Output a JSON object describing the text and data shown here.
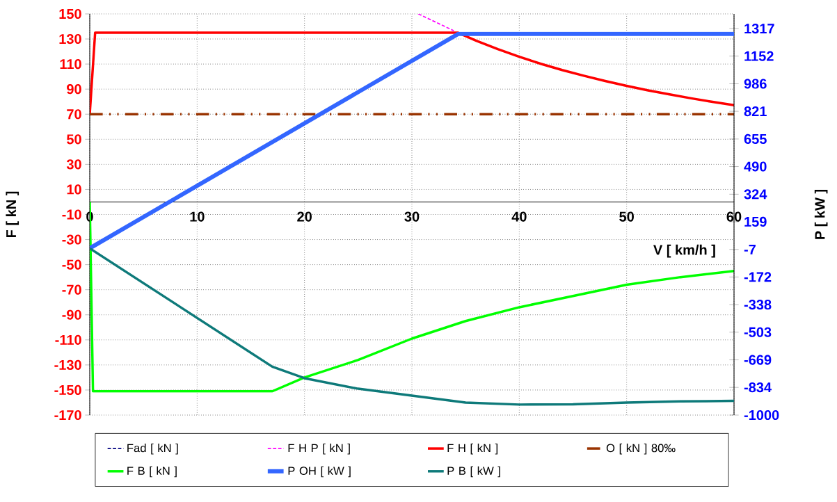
{
  "chart_data": {
    "type": "line",
    "xlabel": "V [ km/h ]",
    "ylabel": "F [ kN ]",
    "y2label": "P [ kW ]",
    "xlim": [
      0,
      60
    ],
    "xticks": [
      0,
      10,
      20,
      30,
      40,
      50,
      60
    ],
    "ylim": [
      -170,
      150
    ],
    "yticks": [
      -170,
      -150,
      -130,
      -110,
      -90,
      -70,
      -50,
      -30,
      -10,
      10,
      30,
      50,
      70,
      90,
      110,
      130,
      150
    ],
    "y2lim": [
      -1000,
      1405
    ],
    "y2ticks": [
      -1000,
      -834,
      -669,
      -503,
      -338,
      -172,
      -7,
      159,
      324,
      490,
      655,
      821,
      986,
      1152,
      1317
    ],
    "grid": true,
    "legend": "bottom",
    "series": [
      {
        "name": "Fad [ kN ]",
        "color": "#000080",
        "line_style": "dashed"
      },
      {
        "name": "F H P [ kN ]",
        "color": "#ff00ff",
        "line_style": "dashed",
        "x": [
          30.6,
          33.9
        ],
        "values": [
          150,
          136.6
        ]
      },
      {
        "name": "F H [ kN ]",
        "color": "#ff0000",
        "line_style": "solid",
        "x": [
          0,
          0.5,
          34.3,
          36,
          38,
          40,
          42,
          44,
          46,
          48,
          50,
          52,
          54,
          56,
          58,
          60
        ],
        "values": [
          70,
          135,
          135,
          128.6,
          121.9,
          115.8,
          110.2,
          105.2,
          100.7,
          96.5,
          92.6,
          89.0,
          85.8,
          82.7,
          79.8,
          77.2
        ]
      },
      {
        "name": "O [ kN ] 80‰",
        "color": "#993300",
        "line_style": "dashdotdot",
        "x": [
          0,
          60
        ],
        "values": [
          70,
          70
        ]
      },
      {
        "name": "F B [ kN ]",
        "color": "#00ff00",
        "line_style": "solid",
        "x": [
          0,
          0.3,
          17,
          20,
          25,
          30,
          35,
          40,
          45,
          50,
          55,
          60
        ],
        "values": [
          0,
          -151,
          -151,
          -140,
          -126,
          -109,
          -95,
          -84,
          -75,
          -66,
          -60,
          -55
        ]
      },
      {
        "name": "P OH [ kW ]",
        "color": "#3366ff",
        "line_style": "solid",
        "axis": "y2",
        "x": [
          0,
          34.3,
          60
        ],
        "values": [
          0,
          1285,
          1285
        ]
      },
      {
        "name": "P B [ kW ]",
        "color": "#0e7a7a",
        "line_style": "solid",
        "axis": "y2",
        "x": [
          0,
          17,
          20,
          25,
          30,
          35,
          40,
          45,
          50,
          55,
          60
        ],
        "values": [
          0,
          -710,
          -779,
          -842,
          -883,
          -925,
          -937,
          -935,
          -925,
          -918,
          -915
        ]
      }
    ]
  }
}
